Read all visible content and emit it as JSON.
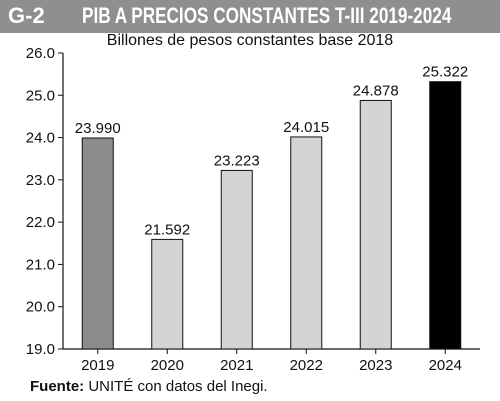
{
  "header": {
    "chart_number": "G-2",
    "title": "PIB A PRECIOS CONSTANTES T-III 2019-2024"
  },
  "subtitle": "Billones de pesos constantes base 2018",
  "source": {
    "label": "Fuente:",
    "text": " UNITÉ con datos del Inegi."
  },
  "colors": {
    "header_band": "#8f8f8f",
    "bar_2019": "#8c8c8c",
    "bar_mid": "#d4d4d4",
    "bar_2024": "#000000"
  },
  "chart_data": {
    "type": "bar",
    "title": "PIB A PRECIOS CONSTANTES T-III 2019-2024",
    "subtitle": "Billones de pesos constantes base 2018",
    "categories": [
      "2019",
      "2020",
      "2021",
      "2022",
      "2023",
      "2024"
    ],
    "values": [
      23.99,
      21.592,
      23.223,
      24.015,
      24.878,
      25.322
    ],
    "value_labels": [
      "23.990",
      "21.592",
      "23.223",
      "24.015",
      "24.878",
      "25.322"
    ],
    "bar_colors": [
      "#8c8c8c",
      "#d4d4d4",
      "#d4d4d4",
      "#d4d4d4",
      "#d4d4d4",
      "#000000"
    ],
    "ylim": [
      19.0,
      26.0
    ],
    "yticks": [
      "19.0",
      "20.0",
      "21.0",
      "22.0",
      "23.0",
      "24.0",
      "25.0",
      "26.0"
    ],
    "grid": false,
    "xlabel": "",
    "ylabel": ""
  }
}
